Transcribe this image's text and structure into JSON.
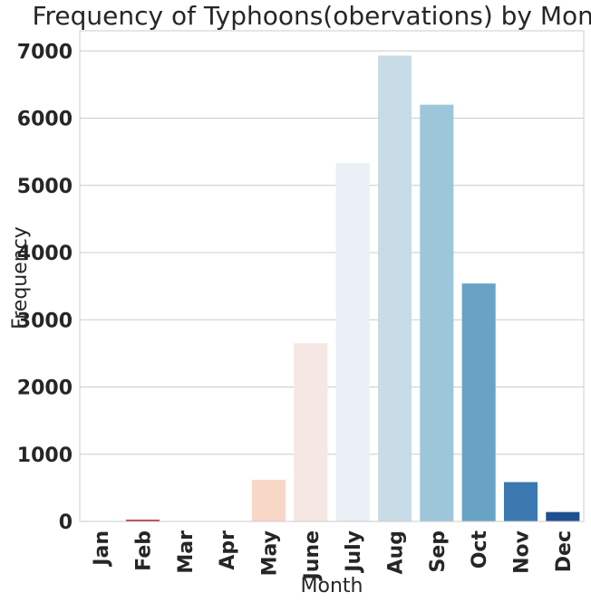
{
  "chart_data": {
    "type": "bar",
    "title": "Frequency of Typhoons(obervations) by Month.",
    "xlabel": "Month",
    "ylabel": "Frequency",
    "categories": [
      "Jan",
      "Feb",
      "Mar",
      "Apr",
      "May",
      "June",
      "July",
      "Aug",
      "Sep",
      "Oct",
      "Nov",
      "Dec"
    ],
    "values": [
      3,
      25,
      2,
      4,
      620,
      2650,
      5330,
      6930,
      6200,
      3540,
      585,
      140
    ],
    "colors": [
      "#67000d",
      "#b41d24",
      "#e5685b",
      "#fbc6ab",
      "#f8d7c7",
      "#f5e7e3",
      "#eaf0f5",
      "#c8dce8",
      "#9ec6da",
      "#68a3c6",
      "#3b78b0",
      "#1f4f8f"
    ],
    "ylim": [
      0,
      7300
    ],
    "yticks": [
      0,
      1000,
      2000,
      3000,
      4000,
      5000,
      6000,
      7000
    ],
    "grid": true
  }
}
